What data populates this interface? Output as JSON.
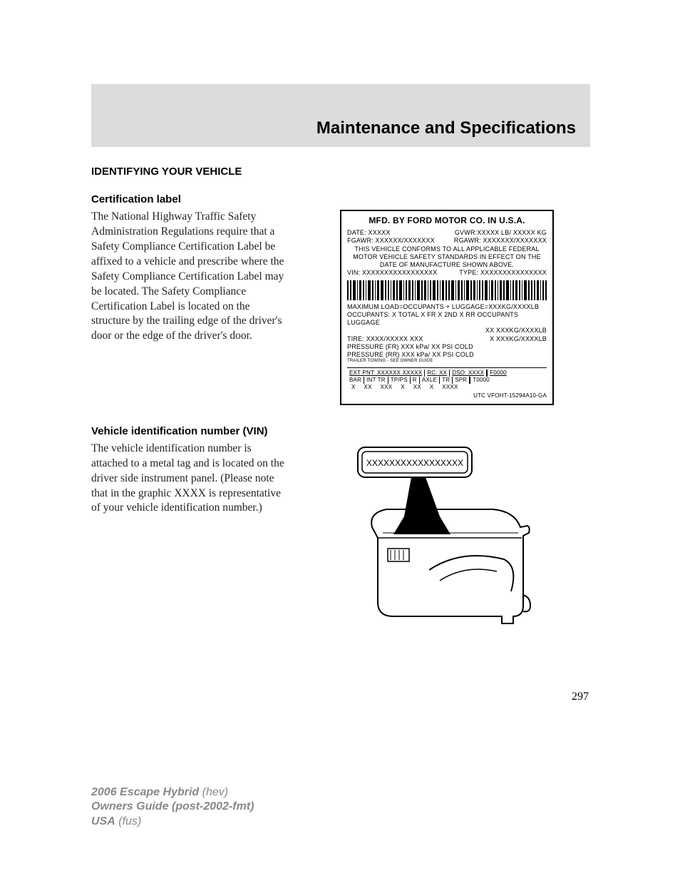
{
  "header": {
    "title": "Maintenance and Specifications"
  },
  "sections": {
    "identifying": {
      "heading": "IDENTIFYING YOUR VEHICLE",
      "cert": {
        "sub_heading": "Certification label",
        "body": "The National Highway Traffic Safety Administration Regulations require that a Safety Compliance Certification Label be affixed to a vehicle and prescribe where the Safety Compliance Certification Label may be located. The Safety Compliance Certification Label is located on the structure by the trailing edge of the driver's door or the edge of the driver's door."
      },
      "vin": {
        "sub_heading": "Vehicle identification number (VIN)",
        "body": "The vehicle identification number is attached to a metal tag and is located on the driver side instrument panel. (Please note that in the graphic XXXX is representative of your vehicle identification number.)"
      }
    }
  },
  "cert_label": {
    "title": "MFD. BY FORD MOTOR CO. IN U.S.A.",
    "date": "DATE: XXXXX",
    "gvwr": "GVWR:XXXXX  LB/ XXXXX KG",
    "fgawr": "FGAWR: XXXXXX/XXXXXXX",
    "rgawr": "RGAWR: XXXXXXX/XXXXXXX",
    "conform1": "THIS VEHICLE CONFORMS TO ALL APPLICABLE FEDERAL",
    "conform2": "MOTOR VEHICLE SAFETY STANDARDS IN EFFECT ON THE",
    "conform3": "DATE OF MANUFACTURE SHOWN ABOVE.",
    "vin": "VIN: XXXXXXXXXXXXXXXXX",
    "type": "TYPE: XXXXXXXXXXXXXXX",
    "maxload": "MAXIMUM LOAD=OCCUPANTS + LUGGAGE=XXXKG/XXXXLB",
    "occupants": "OCCUPANTS: X TOTAL X FR X 2ND X RR OCCUPANTS LUGGAGE",
    "occ_xx": "XX    XXXKG/XXXXLB",
    "tire": "TIRE: XXXX/XXXXX XXX",
    "tire_x": "X     XXXKG/XXXXLB",
    "press_fr": "PRESSURE (FR)  XXX kPa/ XX PSI COLD",
    "press_rr": "PRESSURE (RR)  XXX kPa/ XX PSI COLD",
    "trailer": "TRAILER TOWING - SEE OWNER GUIDE",
    "ext_pnt": "EXT PNT: XXXXXX XXXXX",
    "rc": "RC: XX",
    "dso": "DSO: XXXX",
    "f0000": "F0000",
    "t0000": "T0000",
    "table_headers": [
      "BAR",
      "INT TR",
      "TP/PS",
      "R",
      "AXLE",
      "TR",
      "SPR"
    ],
    "table_values": [
      "X",
      "XX",
      "XXX",
      "X",
      "XX",
      "X",
      "XXXX"
    ],
    "utc": "UTC    VFOHT-15294A10-GA"
  },
  "vin_plate": {
    "text": "XXXXXXXXXXXXXXXXX"
  },
  "page_number": "297",
  "footer": {
    "line1_bold": "2006 Escape Hybrid",
    "line1_norm": "(hev)",
    "line2_bold": "Owners Guide (post-2002-fmt)",
    "line3_bold": "USA",
    "line3_norm": "(fus)"
  },
  "colors": {
    "header_band": "#dcdcdc",
    "text": "#000000",
    "footer_text": "#888888",
    "background": "#ffffff"
  },
  "barcode_widths": [
    2,
    2,
    4,
    1,
    3,
    2,
    1,
    4,
    2,
    1,
    3,
    4,
    2,
    2,
    1,
    3,
    2,
    4,
    1,
    2,
    3,
    2,
    1,
    4,
    2,
    3,
    1,
    2,
    4,
    2,
    1,
    3,
    2,
    2,
    4,
    1,
    3,
    2,
    1,
    4,
    2,
    3,
    1,
    2,
    2,
    4,
    1,
    3,
    2,
    1,
    3,
    2,
    4,
    1,
    2,
    3,
    2,
    1,
    4,
    2,
    2,
    2,
    3,
    1,
    2,
    2
  ]
}
